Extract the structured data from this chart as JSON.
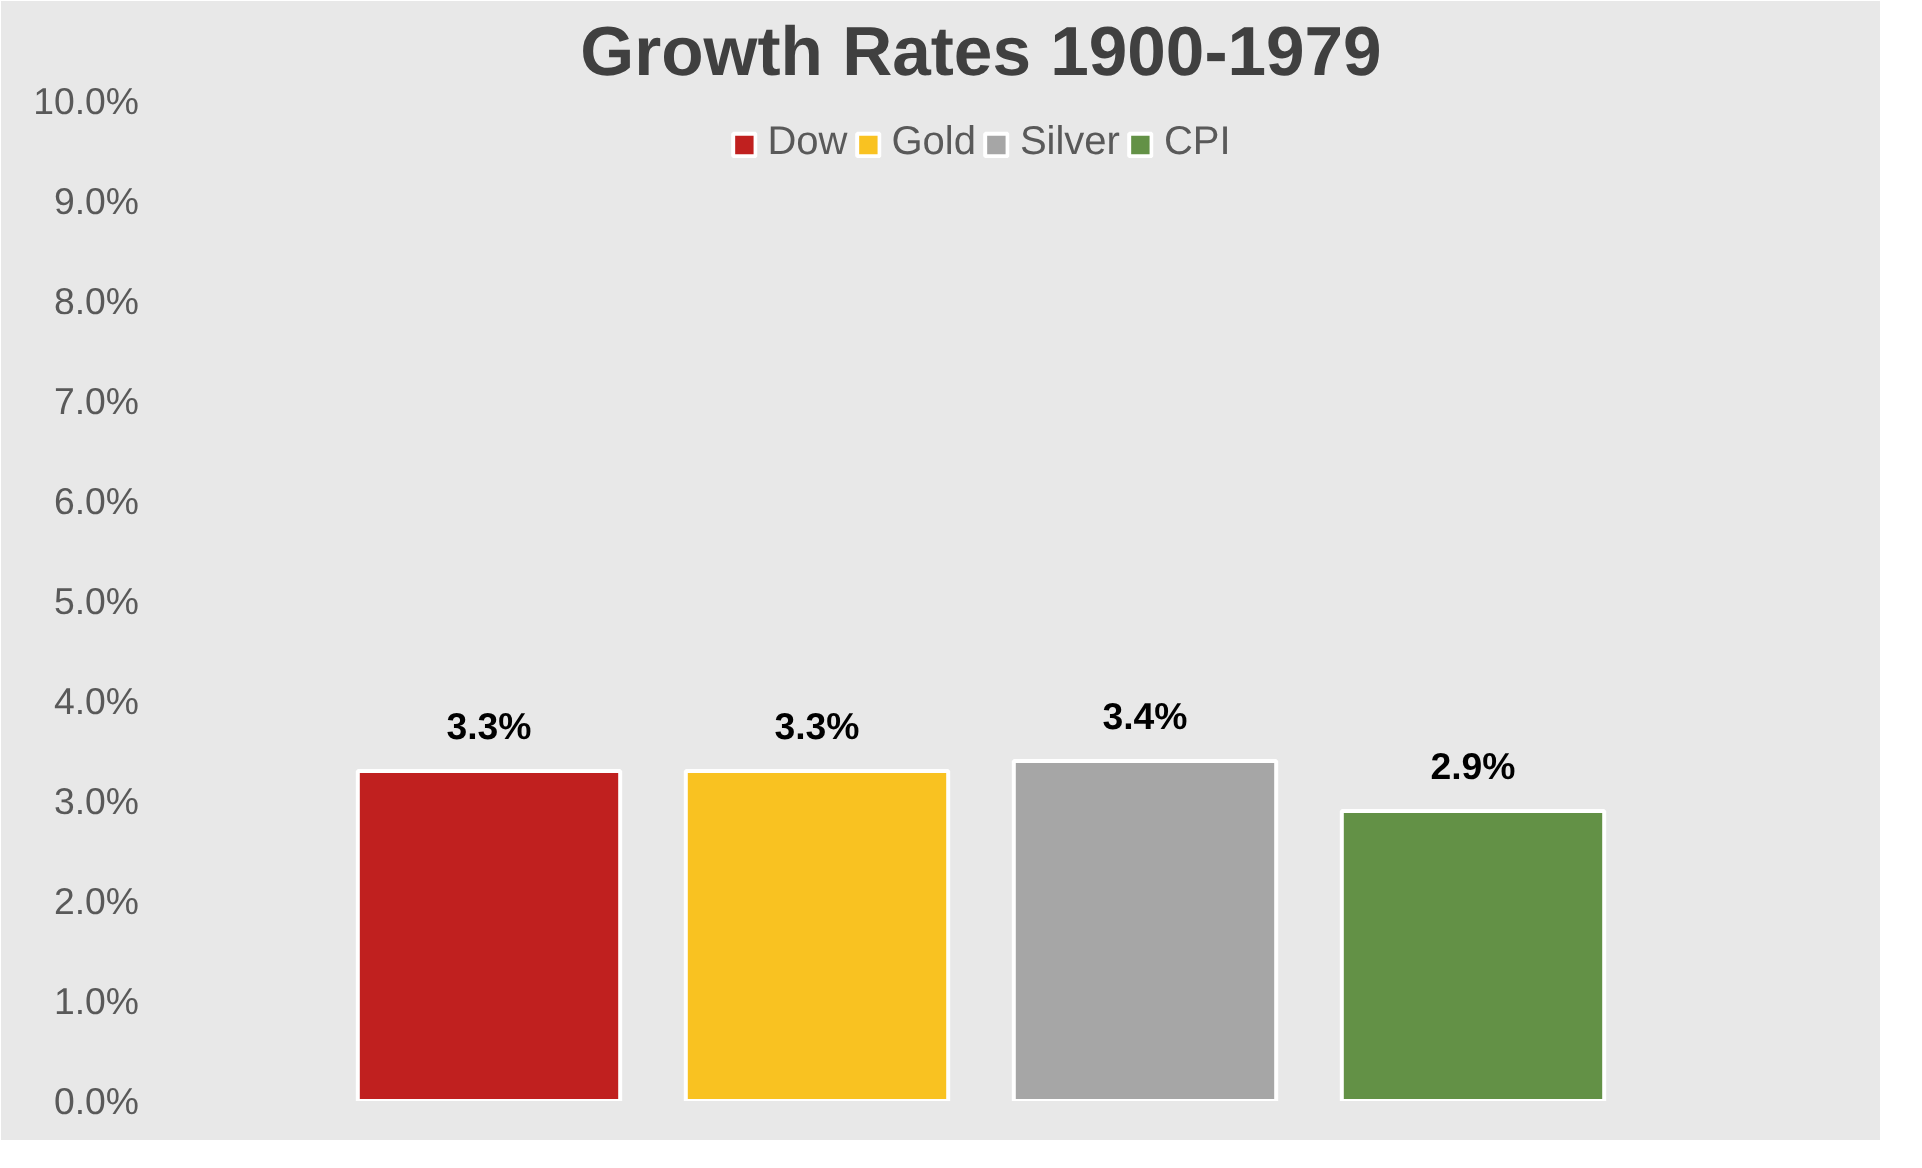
{
  "chart_data": {
    "type": "bar",
    "title": "Growth Rates 1900-1979",
    "categories": [
      null
    ],
    "series": [
      {
        "name": "Dow",
        "color": "#c0201f",
        "values": [
          3.3
        ],
        "value_labels": [
          "3.3%"
        ]
      },
      {
        "name": "Gold",
        "color": "#f9c221",
        "values": [
          3.3
        ],
        "value_labels": [
          "3.3%"
        ]
      },
      {
        "name": "Silver",
        "color": "#a6a6a6",
        "values": [
          3.4
        ],
        "value_labels": [
          "3.4%"
        ]
      },
      {
        "name": "CPI",
        "color": "#639146",
        "values": [
          2.9
        ],
        "value_labels": [
          "2.9%"
        ]
      }
    ],
    "ylim": [
      0,
      10
    ],
    "yticks": [
      {
        "value": 0,
        "label": "0.0%"
      },
      {
        "value": 1,
        "label": "1.0%"
      },
      {
        "value": 2,
        "label": "2.0%"
      },
      {
        "value": 3,
        "label": "3.0%"
      },
      {
        "value": 4,
        "label": "4.0%"
      },
      {
        "value": 5,
        "label": "5.0%"
      },
      {
        "value": 6,
        "label": "6.0%"
      },
      {
        "value": 7,
        "label": "7.0%"
      },
      {
        "value": 8,
        "label": "8.0%"
      },
      {
        "value": 9,
        "label": "9.0%"
      },
      {
        "value": 10,
        "label": "10.0%"
      }
    ],
    "legend": "top"
  }
}
